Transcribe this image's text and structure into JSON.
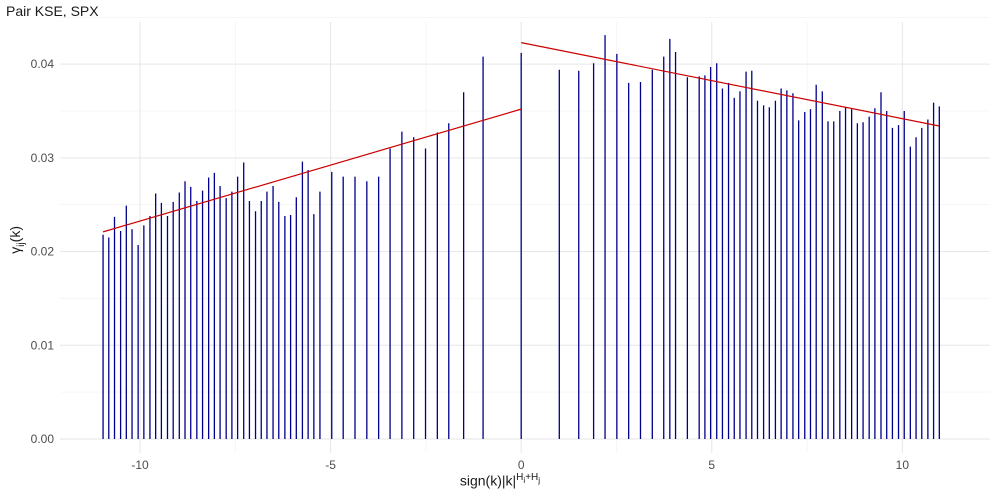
{
  "chart_data": {
    "type": "bar",
    "title": "Pair KSE, SPX",
    "ylabel": {
      "base": "γ",
      "sub": "ij",
      "tail": "(k)"
    },
    "xlabel": {
      "base": "sign(k)|k|",
      "sup": "H",
      "sub": "i",
      "sup2": "+H",
      "sub2": "j"
    },
    "xlim": [
      -12.1,
      12.3
    ],
    "ylim": [
      -0.0015,
      0.0445
    ],
    "x_ticks": [
      -10,
      -5,
      0,
      5,
      10
    ],
    "x_tick_labels": [
      "-10",
      "-5",
      "0",
      "5",
      "10"
    ],
    "y_ticks": [
      0,
      0.01,
      0.02,
      0.03,
      0.04
    ],
    "y_tick_labels": [
      "0.00",
      "0.01",
      "0.02",
      "0.03",
      "0.04"
    ],
    "grid": true,
    "bar_color": "#00008b",
    "fit_color": "#cc0000",
    "bars": {
      "x": [
        -10.97,
        -10.82,
        -10.67,
        -10.51,
        -10.36,
        -10.21,
        -10.05,
        -9.9,
        -9.74,
        -9.59,
        -9.44,
        -9.28,
        -9.13,
        -8.97,
        -8.82,
        -8.67,
        -8.51,
        -8.36,
        -8.2,
        -8.05,
        -7.9,
        -7.74,
        -7.59,
        -7.44,
        -7.28,
        -7.13,
        -6.97,
        -6.82,
        -6.67,
        -6.51,
        -6.36,
        -6.2,
        -6.05,
        -5.9,
        -5.74,
        -5.59,
        -5.44,
        -5.28,
        -4.97,
        -4.67,
        -4.36,
        -4.05,
        -3.74,
        -3.44,
        -3.13,
        -2.82,
        -2.51,
        -2.2,
        -1.9,
        -1.51,
        -1.0,
        0,
        1.0,
        1.51,
        1.9,
        2.2,
        2.51,
        2.82,
        3.13,
        3.44,
        3.74,
        3.9,
        4.05,
        4.36,
        4.67,
        4.82,
        4.97,
        5.13,
        5.28,
        5.44,
        5.59,
        5.74,
        5.9,
        6.05,
        6.2,
        6.36,
        6.51,
        6.67,
        6.82,
        6.97,
        7.13,
        7.28,
        7.44,
        7.59,
        7.74,
        7.9,
        8.05,
        8.2,
        8.36,
        8.51,
        8.67,
        8.82,
        8.97,
        9.13,
        9.28,
        9.44,
        9.59,
        9.74,
        9.9,
        10.05,
        10.21,
        10.36,
        10.51,
        10.67,
        10.82,
        10.97
      ],
      "values": [
        0.0218,
        0.0215,
        0.0237,
        0.0222,
        0.0249,
        0.0224,
        0.0207,
        0.0228,
        0.0238,
        0.0262,
        0.0252,
        0.0238,
        0.0253,
        0.0263,
        0.0275,
        0.0269,
        0.0254,
        0.0265,
        0.0279,
        0.0284,
        0.027,
        0.0257,
        0.0264,
        0.028,
        0.0295,
        0.0254,
        0.0243,
        0.0254,
        0.0264,
        0.027,
        0.0253,
        0.0238,
        0.0239,
        0.0258,
        0.0296,
        0.0287,
        0.024,
        0.0264,
        0.0285,
        0.028,
        0.028,
        0.0275,
        0.028,
        0.031,
        0.0328,
        0.0322,
        0.031,
        0.0327,
        0.0337,
        0.037,
        0.0408,
        0.0412,
        0.0394,
        0.0393,
        0.0401,
        0.0431,
        0.0411,
        0.038,
        0.0381,
        0.0394,
        0.0408,
        0.0427,
        0.0413,
        0.0386,
        0.0387,
        0.0388,
        0.0397,
        0.0401,
        0.0374,
        0.038,
        0.0364,
        0.0371,
        0.0392,
        0.0393,
        0.0361,
        0.0356,
        0.0354,
        0.0361,
        0.0374,
        0.0372,
        0.0369,
        0.034,
        0.0349,
        0.0352,
        0.0378,
        0.0371,
        0.0339,
        0.0339,
        0.035,
        0.0354,
        0.0352,
        0.0337,
        0.0338,
        0.0344,
        0.0353,
        0.037,
        0.035,
        0.0332,
        0.0335,
        0.035,
        0.0312,
        0.0322,
        0.0332,
        0.0341,
        0.0359,
        0.0355
      ]
    },
    "fit_lines": [
      {
        "x": [
          -10.97,
          0
        ],
        "y": [
          0.0221,
          0.0352
        ]
      },
      {
        "x": [
          0,
          10.97
        ],
        "y": [
          0.0423,
          0.0334
        ]
      }
    ]
  }
}
